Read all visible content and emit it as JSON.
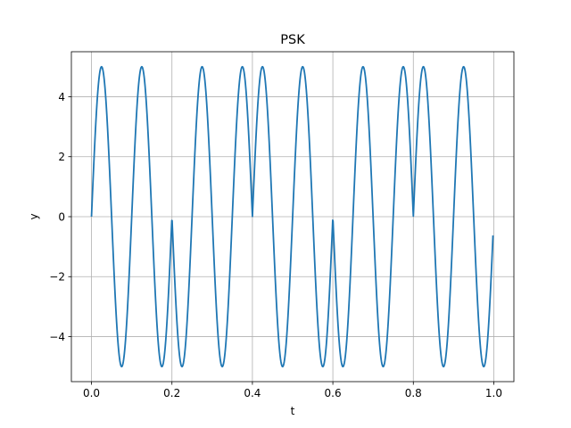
{
  "chart_data": {
    "type": "line",
    "title": "PSK",
    "xlabel": "t",
    "ylabel": "y",
    "xlim": [
      -0.05,
      1.05
    ],
    "ylim": [
      -5.5,
      5.5
    ],
    "xticks": [
      0.0,
      0.2,
      0.4,
      0.6,
      0.8,
      1.0
    ],
    "xtick_labels": [
      "0.0",
      "0.2",
      "0.4",
      "0.6",
      "0.8",
      "1.0"
    ],
    "yticks": [
      -4,
      -2,
      0,
      2,
      4
    ],
    "ytick_labels": [
      "−4",
      "−2",
      "0",
      "2",
      "4"
    ],
    "grid": true,
    "series": [
      {
        "color": "#1f77b4",
        "amplitude": 5,
        "carrier_frequency": 10,
        "x_range": [
          0.0,
          0.998
        ],
        "segments": [
          {
            "t_start": 0.0,
            "t_end": 0.2,
            "phase": "0"
          },
          {
            "t_start": 0.2,
            "t_end": 0.4,
            "phase": "π"
          },
          {
            "t_start": 0.4,
            "t_end": 0.6,
            "phase": "0"
          },
          {
            "t_start": 0.6,
            "t_end": 0.8,
            "phase": "π"
          },
          {
            "t_start": 0.8,
            "t_end": 1.0,
            "phase": "0"
          }
        ]
      }
    ]
  }
}
